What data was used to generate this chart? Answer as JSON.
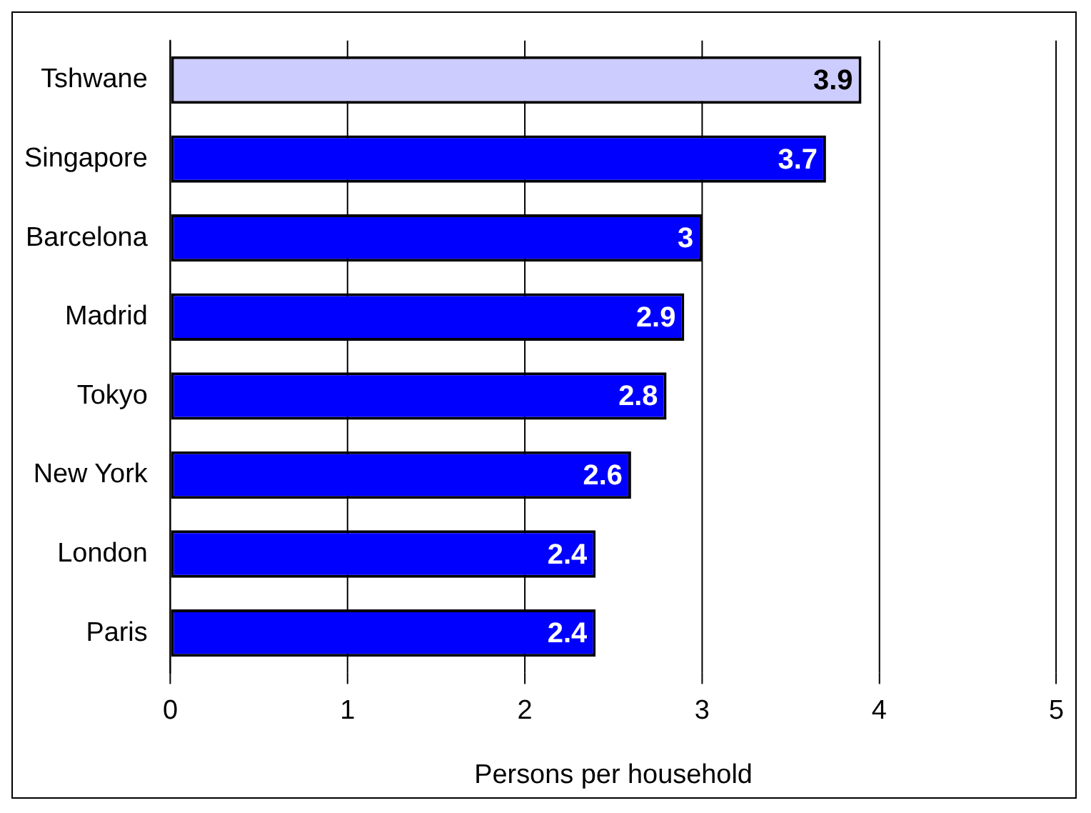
{
  "chart_data": {
    "type": "bar",
    "orientation": "horizontal",
    "xlabel": "Persons per household",
    "categories": [
      "Tshwane",
      "Singapore",
      "Barcelona",
      "Madrid",
      "Tokyo",
      "New York",
      "London",
      "Paris"
    ],
    "values": [
      3.9,
      3.7,
      3,
      2.9,
      2.8,
      2.6,
      2.4,
      2.4
    ],
    "colors": [
      "#ccccff",
      "#0000ff",
      "#0000ff",
      "#0000ff",
      "#0000ff",
      "#0000ff",
      "#0000ff",
      "#0000ff"
    ],
    "xlim": [
      0,
      5
    ],
    "xticks": [
      0,
      1,
      2,
      3,
      4,
      5
    ],
    "grid": "x",
    "data_labels": true,
    "legend": false
  }
}
